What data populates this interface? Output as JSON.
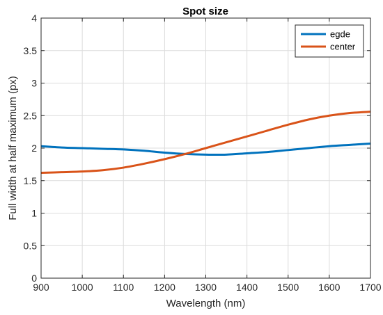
{
  "chart_data": {
    "type": "line",
    "title": "Spot size",
    "xlabel": "Wavelength (nm)",
    "ylabel": "Full width at half maximum (px)",
    "xlim": [
      900,
      1700
    ],
    "ylim": [
      0,
      4
    ],
    "xticks": [
      900,
      1000,
      1100,
      1200,
      1300,
      1400,
      1500,
      1600,
      1700
    ],
    "yticks": [
      0,
      0.5,
      1,
      1.5,
      2,
      2.5,
      3,
      3.5,
      4
    ],
    "xtick_labels": [
      "900",
      "1000",
      "1100",
      "1200",
      "1300",
      "1400",
      "1500",
      "1600",
      "1700"
    ],
    "ytick_labels": [
      "0",
      "0.5",
      "1",
      "1.5",
      "2",
      "2.5",
      "3",
      "3.5",
      "4"
    ],
    "grid": true,
    "legend_position": "top-right",
    "series": [
      {
        "name": "egde",
        "color": "#0072BD",
        "x": [
          900,
          950,
          1000,
          1050,
          1100,
          1150,
          1200,
          1250,
          1300,
          1350,
          1400,
          1450,
          1500,
          1550,
          1600,
          1650,
          1700
        ],
        "y": [
          2.03,
          2.01,
          2.0,
          1.99,
          1.98,
          1.96,
          1.93,
          1.91,
          1.9,
          1.9,
          1.92,
          1.94,
          1.97,
          2.0,
          2.03,
          2.05,
          2.07
        ]
      },
      {
        "name": "center",
        "color": "#D95319",
        "x": [
          900,
          950,
          1000,
          1050,
          1100,
          1150,
          1200,
          1250,
          1300,
          1350,
          1400,
          1450,
          1500,
          1550,
          1600,
          1650,
          1700
        ],
        "y": [
          1.62,
          1.63,
          1.64,
          1.66,
          1.7,
          1.76,
          1.83,
          1.91,
          2.0,
          2.09,
          2.18,
          2.27,
          2.36,
          2.44,
          2.5,
          2.54,
          2.56
        ]
      }
    ]
  }
}
